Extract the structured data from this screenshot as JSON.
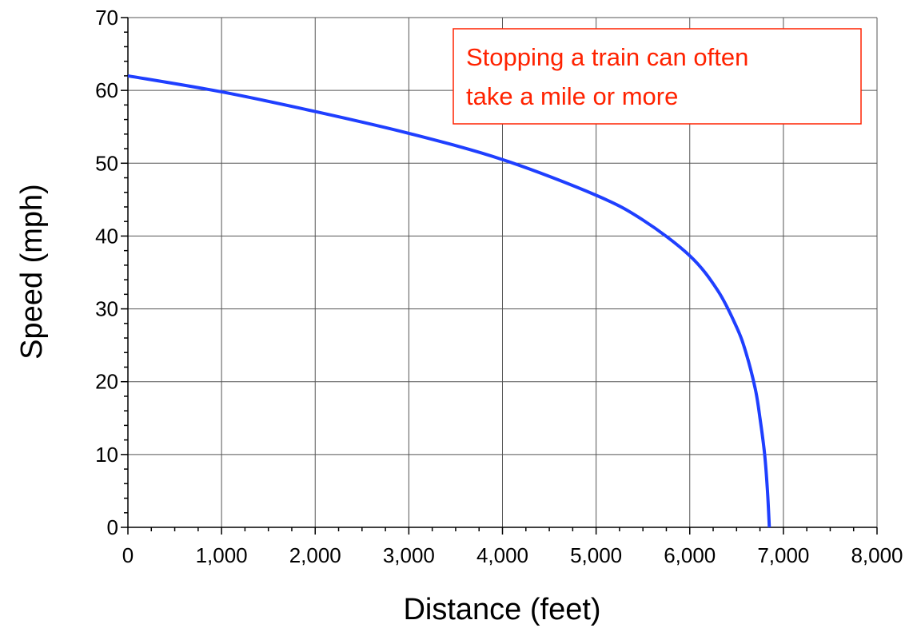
{
  "chart_data": {
    "type": "line",
    "title": "",
    "xlabel": "Distance (feet)",
    "ylabel": "Speed (mph)",
    "xlim": [
      0,
      8000
    ],
    "ylim": [
      0,
      70
    ],
    "x_ticks": [
      0,
      1000,
      2000,
      3000,
      4000,
      5000,
      6000,
      7000,
      8000
    ],
    "x_tick_labels": [
      "0",
      "1,000",
      "2,000",
      "3,000",
      "4,000",
      "5,000",
      "6,000",
      "7,000",
      "8,000"
    ],
    "y_ticks": [
      0,
      10,
      20,
      30,
      40,
      50,
      60,
      70
    ],
    "y_tick_labels": [
      "0",
      "10",
      "20",
      "30",
      "40",
      "50",
      "60",
      "70"
    ],
    "grid": true,
    "series": [
      {
        "color": "#1f3fff",
        "x": [
          0,
          1000,
          2000,
          3000,
          4000,
          5000,
          5500,
          6000,
          6300,
          6500,
          6600,
          6700,
          6750,
          6800,
          6830,
          6850
        ],
        "y": [
          62,
          59.8,
          57.1,
          54.1,
          50.5,
          45.6,
          42.2,
          37.3,
          32.5,
          27.5,
          24.0,
          19.0,
          15.0,
          10.0,
          5.0,
          0
        ]
      }
    ],
    "annotations": [
      {
        "lines": [
          "Stopping a train can often",
          "take a mile or more"
        ],
        "color": "#ff2200",
        "border_color": "#ff2200",
        "position": "top-right"
      }
    ]
  }
}
